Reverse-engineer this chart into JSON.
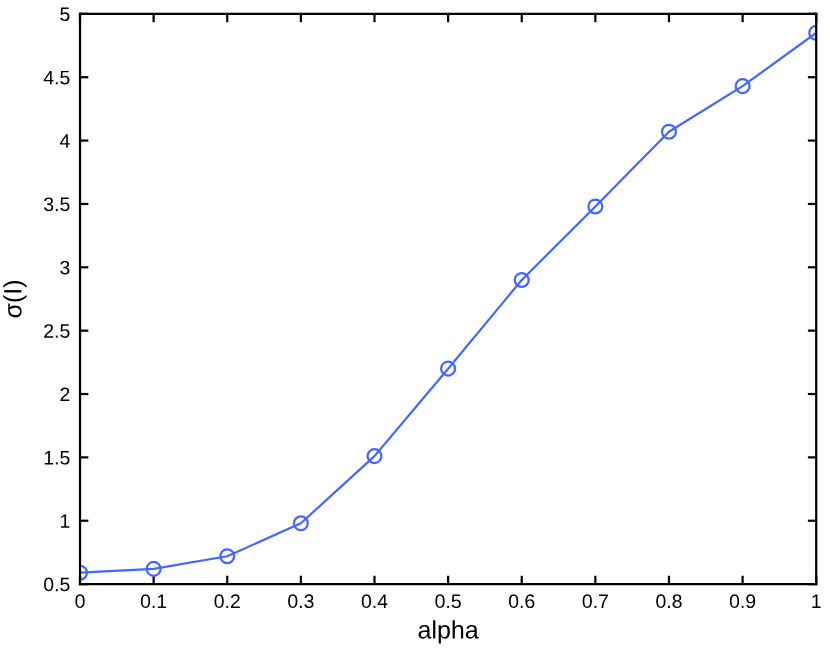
{
  "chart_data": {
    "type": "line",
    "xlabel": "alpha",
    "ylabel": "σ(I)",
    "x": [
      0,
      0.1,
      0.2,
      0.3,
      0.4,
      0.5,
      0.6,
      0.7,
      0.8,
      0.9,
      1
    ],
    "series": [
      {
        "color": "#4466ff",
        "values": [
          0.59,
          0.62,
          0.72,
          0.98,
          1.51,
          2.2,
          2.9,
          3.48,
          4.07,
          4.43,
          4.85
        ]
      }
    ],
    "xlim": [
      0,
      1
    ],
    "ylim": [
      0.5,
      5
    ],
    "xticks": [
      0,
      0.1,
      0.2,
      0.3,
      0.4,
      0.5,
      0.6,
      0.7,
      0.8,
      0.9,
      1
    ],
    "yticks": [
      0.5,
      1,
      1.5,
      2,
      2.5,
      3,
      3.5,
      4,
      4.5,
      5
    ],
    "grid": false,
    "legend": false,
    "marker": "circle",
    "line_style": "solid"
  }
}
